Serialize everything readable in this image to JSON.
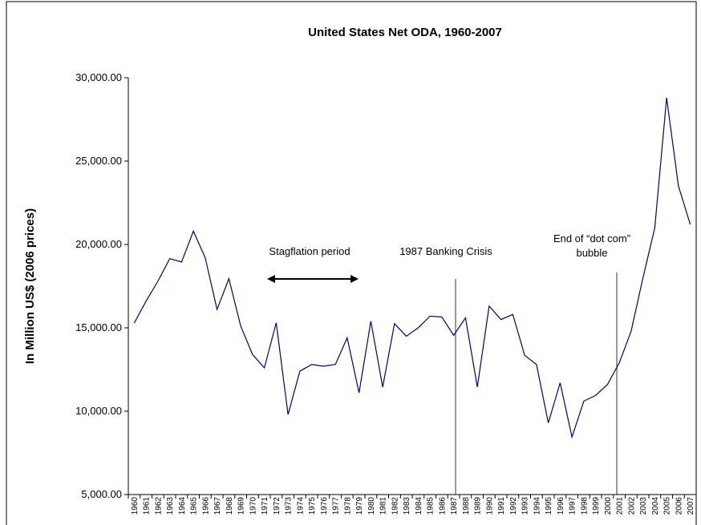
{
  "chart_data": {
    "type": "line",
    "title": "United States Net ODA, 1960-2007",
    "y_label": "In Million US$ (2006 prices)",
    "categories": [
      "1960",
      "1961",
      "1962",
      "1963",
      "1964",
      "1965",
      "1966",
      "1967",
      "1968",
      "1969",
      "1970",
      "1971",
      "1972",
      "1973",
      "1974",
      "1975",
      "1976",
      "1977",
      "1978",
      "1979",
      "1980",
      "1981",
      "1982",
      "1983",
      "1984",
      "1985",
      "1986",
      "1987",
      "1988",
      "1989",
      "1990",
      "1991",
      "1992",
      "1993",
      "1994",
      "1995",
      "1996",
      "1997",
      "1998",
      "1999",
      "2000",
      "2001",
      "2002",
      "2003",
      "2004",
      "2005",
      "2006",
      "2007"
    ],
    "series": [
      {
        "name": "United States Net ODA",
        "color": "#000080",
        "values": [
          15290,
          16600,
          17800,
          19150,
          18950,
          20800,
          19200,
          16100,
          17950,
          15100,
          13400,
          12600,
          15300,
          9800,
          12400,
          12800,
          12700,
          12800,
          14400,
          11100,
          15400,
          11450,
          15250,
          14500,
          15000,
          15700,
          15650,
          14550,
          15600,
          11450,
          16300,
          15500,
          15800,
          13350,
          12800,
          9300,
          11700,
          8450,
          10600,
          10950,
          11600,
          12900,
          14800,
          18000,
          21000,
          28800,
          23500,
          21200
        ]
      }
    ],
    "ylim": [
      5000,
      30000
    ],
    "yticks": [
      {
        "value": 5000,
        "label": "5,000.00"
      },
      {
        "value": 10000,
        "label": "10,000.00"
      },
      {
        "value": 15000,
        "label": "15,000.00"
      },
      {
        "value": 20000,
        "label": "20,000.00"
      },
      {
        "value": 25000,
        "label": "25,000.00"
      },
      {
        "value": 30000,
        "label": "30,000.00"
      }
    ],
    "grid": false,
    "annotations": [
      [
        "Stagflation period"
      ],
      [
        "1987 Banking Crisis"
      ],
      [
        "End of “dot com”",
        "bubble"
      ]
    ]
  }
}
